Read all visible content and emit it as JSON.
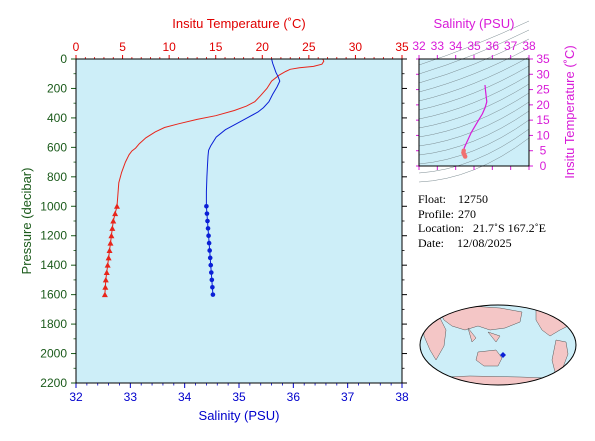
{
  "chart_data": [
    {
      "type": "line",
      "top_axis_label": "Insitu Temperature (˚C)",
      "bottom_axis_label": "Salinity (PSU)",
      "ylabel": "Pressure (decibar)",
      "temp_range": [
        0,
        35
      ],
      "temp_ticks": [
        "0",
        "5",
        "10",
        "15",
        "20",
        "25",
        "30",
        "35"
      ],
      "sal_range": [
        32,
        38
      ],
      "sal_ticks": [
        "32",
        "33",
        "34",
        "35",
        "36",
        "37",
        "38"
      ],
      "pressure_range": [
        0,
        2200
      ],
      "pressure_ticks": [
        "0",
        "200",
        "400",
        "600",
        "800",
        "1000",
        "1200",
        "1400",
        "1600",
        "1800",
        "2000",
        "2200"
      ],
      "colors": {
        "temperature": "#e8251b",
        "salinity": "#0a1fd6",
        "top_axis": "#e00000",
        "bottom_axis": "#0000cc",
        "left_axis": "#1a5a1a",
        "panel": "#cdeef8"
      },
      "series": [
        {
          "variable": "temperature",
          "continuous": [
            [
              26.5,
              0
            ],
            [
              26.6,
              15
            ],
            [
              26.4,
              35
            ],
            [
              25.5,
              50
            ],
            [
              24.0,
              60
            ],
            [
              23.0,
              70
            ],
            [
              22.5,
              85
            ],
            [
              21.8,
              110
            ],
            [
              21.0,
              150
            ],
            [
              20.5,
              200
            ],
            [
              19.8,
              250
            ],
            [
              19.2,
              290
            ],
            [
              18.3,
              320
            ],
            [
              17.0,
              350
            ],
            [
              15.0,
              385
            ],
            [
              13.0,
              410
            ],
            [
              11.0,
              440
            ],
            [
              9.5,
              465
            ],
            [
              8.5,
              495
            ],
            [
              7.5,
              535
            ],
            [
              6.8,
              575
            ],
            [
              6.4,
              605
            ],
            [
              6.0,
              625
            ],
            [
              5.7,
              650
            ],
            [
              5.3,
              700
            ],
            [
              4.9,
              770
            ],
            [
              4.6,
              840
            ],
            [
              4.5,
              920
            ],
            [
              4.4,
              1000
            ]
          ],
          "markers": [
            [
              4.4,
              1000
            ],
            [
              4.2,
              1050
            ],
            [
              4.0,
              1100
            ],
            [
              3.9,
              1150
            ],
            [
              3.8,
              1200
            ],
            [
              3.7,
              1250
            ],
            [
              3.6,
              1300
            ],
            [
              3.5,
              1350
            ],
            [
              3.4,
              1400
            ],
            [
              3.3,
              1450
            ],
            [
              3.2,
              1500
            ],
            [
              3.15,
              1550
            ],
            [
              3.1,
              1600
            ]
          ]
        },
        {
          "variable": "salinity",
          "continuous": [
            [
              35.6,
              0
            ],
            [
              35.62,
              30
            ],
            [
              35.65,
              60
            ],
            [
              35.68,
              90
            ],
            [
              35.72,
              120
            ],
            [
              35.75,
              150
            ],
            [
              35.7,
              190
            ],
            [
              35.62,
              240
            ],
            [
              35.55,
              290
            ],
            [
              35.45,
              330
            ],
            [
              35.35,
              360
            ],
            [
              35.15,
              400
            ],
            [
              34.95,
              440
            ],
            [
              34.75,
              480
            ],
            [
              34.58,
              530
            ],
            [
              34.48,
              590
            ],
            [
              34.44,
              620
            ],
            [
              34.43,
              660
            ],
            [
              34.42,
              720
            ],
            [
              34.41,
              800
            ],
            [
              34.4,
              900
            ],
            [
              34.4,
              1000
            ]
          ],
          "markers": [
            [
              34.4,
              1000
            ],
            [
              34.41,
              1050
            ],
            [
              34.42,
              1100
            ],
            [
              34.43,
              1150
            ],
            [
              34.44,
              1200
            ],
            [
              34.45,
              1250
            ],
            [
              34.46,
              1300
            ],
            [
              34.47,
              1350
            ],
            [
              34.48,
              1400
            ],
            [
              34.49,
              1450
            ],
            [
              34.5,
              1500
            ],
            [
              34.51,
              1550
            ],
            [
              34.52,
              1600
            ]
          ]
        }
      ]
    },
    {
      "type": "scatter",
      "xlabel": "Salinity (PSU)",
      "ylabel": "Insitu Temperature (˚C)",
      "x_ticks": [
        "32",
        "33",
        "34",
        "35",
        "36",
        "37",
        "38"
      ],
      "y_ticks": [
        "0",
        "5",
        "10",
        "15",
        "20",
        "25",
        "30",
        "35"
      ],
      "xlim": [
        32,
        38
      ],
      "ylim": [
        0,
        35
      ],
      "color": "#d81bd8",
      "series": [
        {
          "points": [
            [
              35.6,
              26.5
            ],
            [
              35.62,
              25.0
            ],
            [
              35.66,
              23.0
            ],
            [
              35.7,
              21.0
            ],
            [
              35.6,
              19.0
            ],
            [
              35.45,
              17.0
            ],
            [
              35.25,
              15.0
            ],
            [
              35.05,
              13.0
            ],
            [
              34.85,
              11.0
            ],
            [
              34.7,
              9.0
            ],
            [
              34.55,
              7.0
            ],
            [
              34.47,
              6.0
            ],
            [
              34.44,
              5.0
            ],
            [
              34.42,
              4.4
            ],
            [
              34.45,
              4.0
            ],
            [
              34.48,
              3.6
            ],
            [
              34.5,
              3.3
            ],
            [
              34.52,
              3.1
            ]
          ]
        }
      ]
    }
  ],
  "info": {
    "float_label": "Float:",
    "float_value": "12750",
    "profile_label": "Profile:",
    "profile_value": "270",
    "location_label": "Location:",
    "location_value": "21.7˚S  167.2˚E",
    "date_label": "Date:",
    "date_value": "12/08/2025"
  },
  "map": {
    "land_color": "#f4c6c6",
    "ocean_color": "#cdeef8",
    "marker_color": "#0a1fd6"
  }
}
